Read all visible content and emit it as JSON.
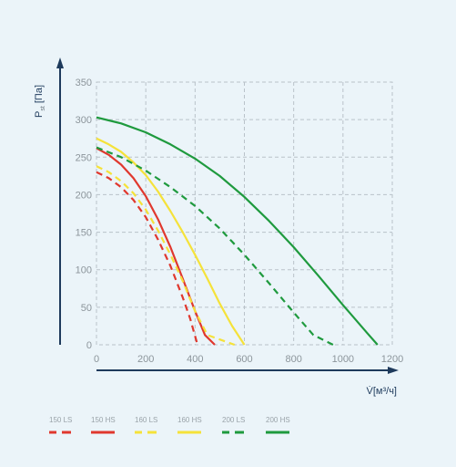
{
  "chart_data": {
    "type": "line",
    "title": "",
    "ylabel_main": "P",
    "ylabel_sub": "st",
    "ylabel_unit": "[Па]",
    "xlabel": "V̇[м³/ч]",
    "xlim": [
      0,
      1200
    ],
    "ylim": [
      0,
      350
    ],
    "xticks": [
      0,
      200,
      400,
      600,
      800,
      1000,
      1200
    ],
    "yticks": [
      0,
      50,
      100,
      150,
      200,
      250,
      300,
      350
    ],
    "grid": true,
    "grid_style": "dashed",
    "legend_position": "bottom-left",
    "series": [
      {
        "name": "150 LS",
        "color": "#e0382e",
        "style": "dashed",
        "points": [
          [
            0,
            230
          ],
          [
            50,
            222
          ],
          [
            100,
            210
          ],
          [
            150,
            193
          ],
          [
            200,
            170
          ],
          [
            250,
            140
          ],
          [
            300,
            105
          ],
          [
            350,
            63
          ],
          [
            380,
            35
          ],
          [
            410,
            0
          ]
        ]
      },
      {
        "name": "150 HS",
        "color": "#e0382e",
        "style": "solid",
        "points": [
          [
            0,
            262
          ],
          [
            50,
            253
          ],
          [
            100,
            240
          ],
          [
            150,
            222
          ],
          [
            200,
            198
          ],
          [
            250,
            167
          ],
          [
            300,
            130
          ],
          [
            350,
            88
          ],
          [
            400,
            45
          ],
          [
            440,
            13
          ],
          [
            480,
            0
          ]
        ]
      },
      {
        "name": "160 LS",
        "color": "#f5e23a",
        "style": "dashed",
        "points": [
          [
            0,
            238
          ],
          [
            50,
            230
          ],
          [
            100,
            218
          ],
          [
            150,
            202
          ],
          [
            200,
            180
          ],
          [
            250,
            152
          ],
          [
            300,
            120
          ],
          [
            350,
            85
          ],
          [
            400,
            45
          ],
          [
            450,
            13
          ],
          [
            560,
            0
          ]
        ]
      },
      {
        "name": "160 HS",
        "color": "#f5e23a",
        "style": "solid",
        "points": [
          [
            0,
            275
          ],
          [
            50,
            267
          ],
          [
            100,
            257
          ],
          [
            150,
            243
          ],
          [
            200,
            226
          ],
          [
            250,
            204
          ],
          [
            300,
            178
          ],
          [
            350,
            150
          ],
          [
            400,
            120
          ],
          [
            450,
            88
          ],
          [
            500,
            55
          ],
          [
            550,
            25
          ],
          [
            600,
            0
          ]
        ]
      },
      {
        "name": "200 LS",
        "color": "#1f9a3e",
        "style": "dashed",
        "points": [
          [
            0,
            263
          ],
          [
            100,
            250
          ],
          [
            200,
            232
          ],
          [
            300,
            210
          ],
          [
            400,
            185
          ],
          [
            500,
            155
          ],
          [
            600,
            120
          ],
          [
            700,
            82
          ],
          [
            800,
            43
          ],
          [
            880,
            13
          ],
          [
            960,
            0
          ]
        ]
      },
      {
        "name": "200 HS",
        "color": "#1f9a3e",
        "style": "solid",
        "points": [
          [
            0,
            303
          ],
          [
            100,
            295
          ],
          [
            200,
            283
          ],
          [
            300,
            267
          ],
          [
            400,
            248
          ],
          [
            500,
            225
          ],
          [
            600,
            197
          ],
          [
            700,
            165
          ],
          [
            800,
            130
          ],
          [
            900,
            92
          ],
          [
            1000,
            53
          ],
          [
            1100,
            15
          ],
          [
            1140,
            0
          ]
        ]
      }
    ]
  }
}
